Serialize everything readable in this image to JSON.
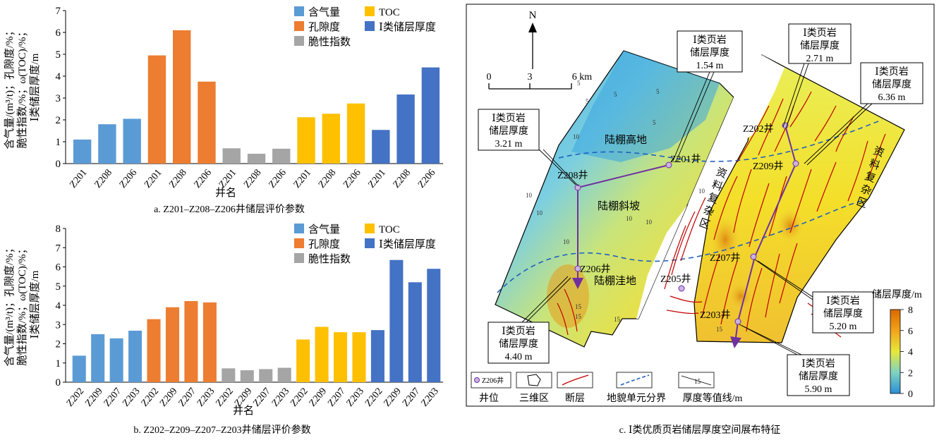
{
  "colors": {
    "gas": "#5b9bd5",
    "porosity": "#ed7d31",
    "brittle": "#a5a5a5",
    "toc": "#ffc000",
    "thickness": "#4472c4",
    "fault": "#c00000",
    "boundary": "#1f5fbf",
    "path": "#7030a0"
  },
  "chart_data": [
    {
      "type": "bar",
      "id": "a",
      "caption": "a. Z201–Z208–Z206井储层评价参数",
      "ylabel_lines": [
        "含气量/(m³/t)；孔隙度/%；",
        "脆性指数/%；ω(TOC)/%；",
        "Ⅰ类储层厚度/m"
      ],
      "xlabel": "井名",
      "ylim": [
        0,
        7
      ],
      "yticks": [
        "0",
        "1",
        "2",
        "3",
        "4",
        "5",
        "6",
        "7"
      ],
      "groups": [
        {
          "name": "含气量",
          "color_key": "gas",
          "categories": [
            "Z201",
            "Z208",
            "Z206"
          ],
          "values": [
            1.1,
            1.8,
            2.05
          ]
        },
        {
          "name": "孔隙度",
          "color_key": "porosity",
          "categories": [
            "Z201",
            "Z208",
            "Z206"
          ],
          "values": [
            4.95,
            6.1,
            3.75
          ]
        },
        {
          "name": "脆性指数",
          "color_key": "brittle",
          "categories": [
            "Z201",
            "Z208",
            "Z206"
          ],
          "values": [
            0.7,
            0.45,
            0.68
          ]
        },
        {
          "name": "TOC",
          "color_key": "toc",
          "categories": [
            "Z201",
            "Z208",
            "Z206"
          ],
          "values": [
            2.12,
            2.28,
            2.75
          ]
        },
        {
          "name": "Ⅰ类储层厚度",
          "color_key": "thickness",
          "categories": [
            "Z201",
            "Z208",
            "Z206"
          ],
          "values": [
            1.54,
            3.16,
            4.4
          ]
        }
      ],
      "legend": [
        "含气量",
        "TOC",
        "孔隙度",
        "Ⅰ类储层厚度",
        "脆性指数"
      ]
    },
    {
      "type": "bar",
      "id": "b",
      "caption": "b. Z202–Z209–Z207–Z203井储层评价参数",
      "ylabel_lines": [
        "含气量/(m³/t)；孔隙度/%；",
        "脆性指数/%；ω(TOC)/%；",
        "Ⅰ类储层厚度/m"
      ],
      "xlabel": "井名",
      "ylim": [
        0,
        8
      ],
      "yticks": [
        "0",
        "1",
        "2",
        "3",
        "4",
        "5",
        "6",
        "7",
        "8"
      ],
      "groups": [
        {
          "name": "含气量",
          "color_key": "gas",
          "categories": [
            "Z202",
            "Z209",
            "Z207",
            "Z203"
          ],
          "values": [
            1.38,
            2.5,
            2.28,
            2.68
          ]
        },
        {
          "name": "孔隙度",
          "color_key": "porosity",
          "categories": [
            "Z202",
            "Z209",
            "Z207",
            "Z203"
          ],
          "values": [
            3.28,
            3.9,
            4.22,
            4.15
          ]
        },
        {
          "name": "脆性指数",
          "color_key": "brittle",
          "categories": [
            "Z202",
            "Z209",
            "Z207",
            "Z203"
          ],
          "values": [
            0.72,
            0.62,
            0.68,
            0.75
          ]
        },
        {
          "name": "TOC",
          "color_key": "toc",
          "categories": [
            "Z202",
            "Z209",
            "Z207",
            "Z203"
          ],
          "values": [
            2.22,
            2.88,
            2.6,
            2.6
          ]
        },
        {
          "name": "Ⅰ类储层厚度",
          "color_key": "thickness",
          "categories": [
            "Z202",
            "Z209",
            "Z207",
            "Z203"
          ],
          "values": [
            2.71,
            6.36,
            5.2,
            5.9
          ]
        }
      ],
      "legend": [
        "含气量",
        "TOC",
        "孔隙度",
        "Ⅰ类储层厚度",
        "脆性指数"
      ]
    }
  ],
  "map": {
    "caption": "c. Ⅰ类优质页岩储层厚度空间展布特征",
    "north": "N",
    "scale_labels": [
      "0",
      "3",
      "6 km"
    ],
    "regions": [
      "陆棚高地",
      "陆棚斜坡",
      "陆棚洼地"
    ],
    "complex_zone_left": [
      "资",
      "料",
      "复",
      "杂",
      "区"
    ],
    "complex_zone_right": [
      "资",
      "料",
      "复",
      "杂",
      "区"
    ],
    "wells": [
      "Z201井",
      "Z208井",
      "Z206井",
      "Z205井",
      "Z202井",
      "Z209井",
      "Z207井",
      "Z203井"
    ],
    "callouts": [
      {
        "lines": [
          "Ⅰ类页岩",
          "储层厚度",
          "1.54 m"
        ]
      },
      {
        "lines": [
          "Ⅰ类页岩",
          "储层厚度",
          "2.71 m"
        ]
      },
      {
        "lines": [
          "Ⅰ类页岩",
          "储层厚度",
          "6.36 m"
        ]
      },
      {
        "lines": [
          "Ⅰ类页岩",
          "储层厚度",
          "3.21 m"
        ]
      },
      {
        "lines": [
          "Ⅰ类页岩",
          "储层厚度",
          "4.40 m"
        ]
      },
      {
        "lines": [
          "Ⅰ类页岩",
          "储层厚度",
          "5.20 m"
        ]
      },
      {
        "lines": [
          "Ⅰ类页岩",
          "储层厚度",
          "5.90 m"
        ]
      }
    ],
    "contour_labels": [
      "5",
      "5",
      "5",
      "5",
      "5",
      "10",
      "10",
      "10",
      "10",
      "10",
      "10",
      "10",
      "15",
      "15",
      "15",
      "15"
    ],
    "colorbar": {
      "title": "储层厚度/m",
      "ticks": [
        "0",
        "2",
        "4",
        "6",
        "8"
      ]
    },
    "legend": {
      "well_sample": "Z206井",
      "items": [
        "井位",
        "三维区",
        "断层",
        "地貌单元分界",
        "厚度等值线/m"
      ],
      "contour_sample": "15"
    }
  }
}
